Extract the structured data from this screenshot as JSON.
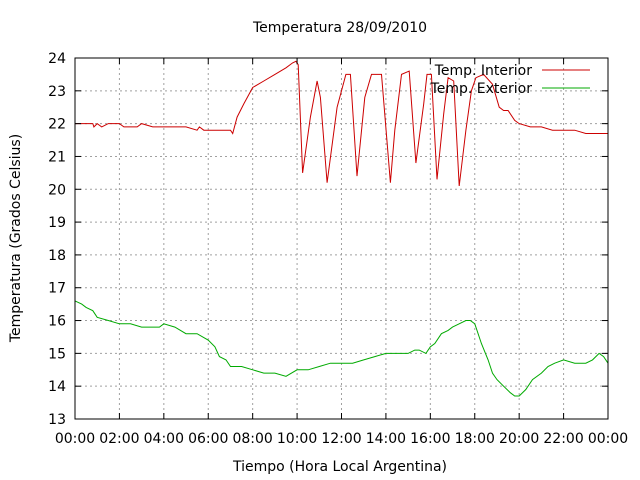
{
  "chart_data": {
    "type": "line",
    "title": "Temperatura 28/09/2010",
    "xlabel": "Tiempo (Hora Local Argentina)",
    "ylabel": "Temperatura (Grados Celsius)",
    "xlim": [
      0,
      24
    ],
    "ylim": [
      13,
      24
    ],
    "x_tick_labels": [
      "00:00",
      "02:00",
      "04:00",
      "06:00",
      "08:00",
      "10:00",
      "12:00",
      "14:00",
      "16:00",
      "18:00",
      "20:00",
      "22:00",
      "00:00"
    ],
    "y_ticks": [
      13,
      14,
      15,
      16,
      17,
      18,
      19,
      20,
      21,
      22,
      23,
      24
    ],
    "grid": true,
    "legend_position": "top-right",
    "series": [
      {
        "name": "Temp. Interior",
        "color": "#cc0000",
        "x": [
          0,
          0.8,
          0.85,
          1.0,
          1.2,
          1.5,
          2.0,
          2.2,
          2.8,
          3.0,
          3.5,
          4.0,
          5.0,
          5.5,
          5.6,
          5.8,
          6.0,
          6.5,
          7.0,
          7.1,
          7.3,
          7.6,
          8.0,
          8.5,
          9.0,
          9.5,
          9.8,
          9.95,
          10.05,
          10.25,
          10.6,
          10.9,
          11.05,
          11.35,
          11.8,
          12.2,
          12.4,
          12.7,
          13.05,
          13.35,
          13.8,
          14.2,
          14.4,
          14.7,
          15.05,
          15.35,
          15.7,
          15.85,
          16.05,
          16.3,
          16.6,
          16.8,
          17.05,
          17.3,
          17.6,
          17.85,
          18.05,
          18.4,
          18.8,
          19.1,
          19.3,
          19.5,
          19.8,
          20.0,
          20.5,
          21.0,
          21.5,
          22.0,
          22.5,
          23.0,
          23.5,
          24.0
        ],
        "y": [
          22.0,
          22.0,
          21.9,
          22.0,
          21.9,
          22.0,
          22.0,
          21.9,
          21.9,
          22.0,
          21.9,
          21.9,
          21.9,
          21.8,
          21.9,
          21.8,
          21.8,
          21.8,
          21.8,
          21.7,
          22.2,
          22.6,
          23.1,
          23.3,
          23.5,
          23.7,
          23.85,
          23.9,
          23.8,
          20.5,
          22.2,
          23.3,
          22.8,
          20.2,
          22.5,
          23.5,
          23.5,
          20.4,
          22.8,
          23.5,
          23.5,
          20.2,
          21.8,
          23.5,
          23.6,
          20.8,
          22.6,
          23.5,
          23.5,
          20.3,
          22.3,
          23.4,
          23.3,
          20.1,
          21.8,
          23.0,
          23.4,
          23.5,
          23.2,
          22.5,
          22.4,
          22.4,
          22.1,
          22.0,
          21.9,
          21.9,
          21.8,
          21.8,
          21.8,
          21.7,
          21.7,
          21.7
        ]
      },
      {
        "name": "Temp. Exterior",
        "color": "#00aa00",
        "x": [
          0,
          0.3,
          0.5,
          0.8,
          1.0,
          1.5,
          2.0,
          2.5,
          3.0,
          3.5,
          3.8,
          4.0,
          4.5,
          5.0,
          5.5,
          6.0,
          6.3,
          6.5,
          6.8,
          7.0,
          7.5,
          8.0,
          8.5,
          9.0,
          9.5,
          10.0,
          10.5,
          11.0,
          11.5,
          12.0,
          12.5,
          13.0,
          13.5,
          14.0,
          14.5,
          15.0,
          15.3,
          15.5,
          15.8,
          16.0,
          16.2,
          16.5,
          16.8,
          17.0,
          17.3,
          17.6,
          17.8,
          18.0,
          18.3,
          18.6,
          18.8,
          19.0,
          19.3,
          19.6,
          19.8,
          20.0,
          20.3,
          20.6,
          21.0,
          21.3,
          21.6,
          22.0,
          22.5,
          23.0,
          23.3,
          23.6,
          23.8,
          24.0
        ],
        "y": [
          16.6,
          16.5,
          16.4,
          16.3,
          16.1,
          16.0,
          15.9,
          15.9,
          15.8,
          15.8,
          15.8,
          15.9,
          15.8,
          15.6,
          15.6,
          15.4,
          15.2,
          14.9,
          14.8,
          14.6,
          14.6,
          14.5,
          14.4,
          14.4,
          14.3,
          14.5,
          14.5,
          14.6,
          14.7,
          14.7,
          14.7,
          14.8,
          14.9,
          15.0,
          15.0,
          15.0,
          15.1,
          15.1,
          15.0,
          15.2,
          15.3,
          15.6,
          15.7,
          15.8,
          15.9,
          16.0,
          16.0,
          15.9,
          15.3,
          14.8,
          14.4,
          14.2,
          14.0,
          13.8,
          13.7,
          13.7,
          13.9,
          14.2,
          14.4,
          14.6,
          14.7,
          14.8,
          14.7,
          14.7,
          14.8,
          15.0,
          14.9,
          14.7
        ]
      }
    ]
  }
}
